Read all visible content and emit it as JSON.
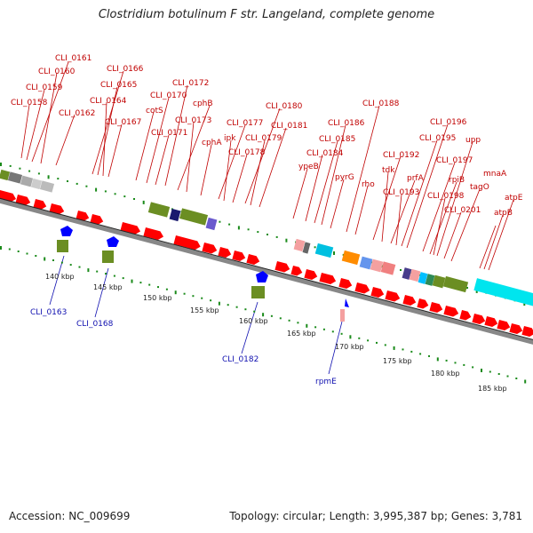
{
  "title": "Clostridium botulinum F str. Langeland, complete genome",
  "accession": "Accession: NC_009699",
  "topology": "Topology: circular; Length: 3,995,387 bp; Genes: 3,781",
  "colors": {
    "forward_gene": "#ff0000",
    "forward_label": "#c00000",
    "reverse_gene": "#0000ff",
    "reverse_label": "#1010b0",
    "tick": "#1a8a1a",
    "backbone": "#888888"
  },
  "scale_labels": [
    "140 kbp",
    "145 kbp",
    "150 kbp",
    "155 kbp",
    "160 kbp",
    "165 kbp",
    "170 kbp",
    "175 kbp",
    "180 kbp",
    "185 kbp"
  ],
  "forward_labels": [
    "CLI_0161",
    "CLI_0160",
    "CLI_0159",
    "CLI_0158",
    "CLI_0162",
    "CLI_0166",
    "CLI_0165",
    "CLI_0164",
    "CLI_0167",
    "CLI_0172",
    "CLI_0170",
    "cotS",
    "CLI_0171",
    "cphB",
    "CLI_0173",
    "cphA",
    "CLI_0180",
    "CLI_0177",
    "ipk",
    "CLI_0179",
    "CLI_0178",
    "CLI_0181",
    "CLI_0188",
    "CLI_0186",
    "CLI_0185",
    "CLI_0184",
    "ypeB",
    "pyrG",
    "rho",
    "CLI_0196",
    "CLI_0195",
    "upp",
    "CLI_0192",
    "tdk",
    "prfA",
    "CLI_0197",
    "CLI_0193",
    "rpiB",
    "CLI_0198",
    "mnaA",
    "tagO",
    "CLI_0201",
    "atpE",
    "atpB"
  ],
  "reverse_labels": [
    "CLI_0163",
    "CLI_0168",
    "CLI_0182",
    "rpmE"
  ]
}
